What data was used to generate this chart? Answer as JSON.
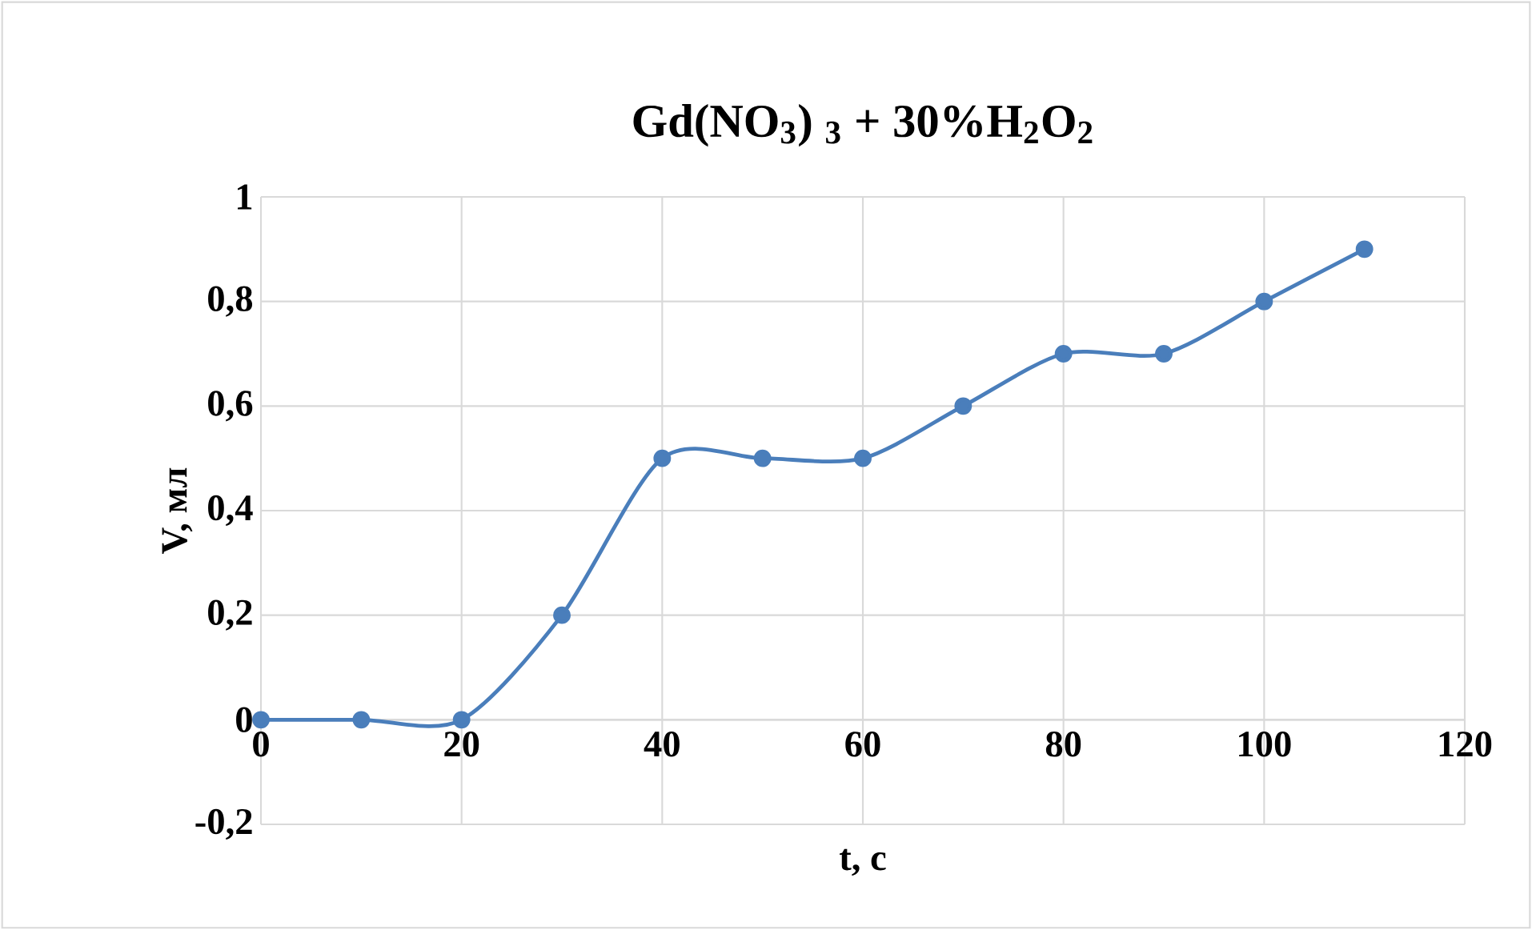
{
  "chart_data": {
    "type": "line",
    "title": "Gd(NO$_{3}$) $_{3}$ + 30%H$_{2}$O$_{2}$",
    "xlabel": "t, с",
    "ylabel": "V, мл",
    "x": [
      0,
      10,
      20,
      30,
      40,
      50,
      60,
      70,
      80,
      90,
      100,
      110
    ],
    "series": [
      {
        "color": "#4a7ebb",
        "values": [
          0,
          0,
          0,
          0.2,
          0.5,
          0.5,
          0.5,
          0.6,
          0.7,
          0.7,
          0.8,
          0.9
        ]
      }
    ],
    "xlim": [
      0,
      120
    ],
    "xticks": [
      0,
      20,
      40,
      60,
      80,
      100,
      120
    ],
    "ylim": [
      -0.2,
      1
    ],
    "yticks": [
      {
        "value": -0.2,
        "label": "-0,2"
      },
      {
        "value": 0,
        "label": "0"
      },
      {
        "value": 0.2,
        "label": "0,2"
      },
      {
        "value": 0.4,
        "label": "0,4"
      },
      {
        "value": 0.6,
        "label": "0,6"
      },
      {
        "value": 0.8,
        "label": "0,8"
      },
      {
        "value": 1,
        "label": "1"
      }
    ],
    "grid": true,
    "marker": "circle",
    "line_style": "solid"
  }
}
